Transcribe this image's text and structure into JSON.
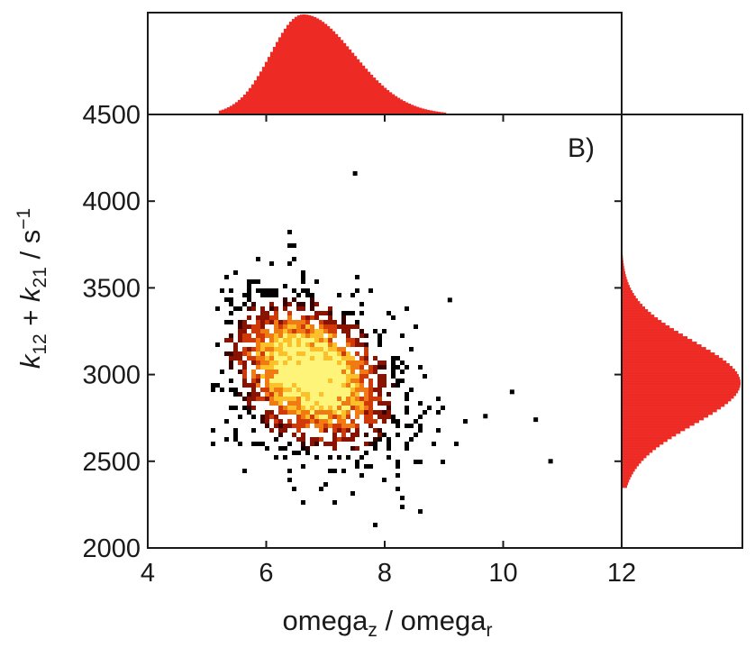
{
  "chart_data": {
    "type": "heatmap",
    "panel_label": "B)",
    "xlabel": {
      "base": "omega",
      "sub1": "z",
      "sep": " / ",
      "base2": "omega",
      "sub2": "r"
    },
    "ylabel": {
      "k": "k",
      "sub1": "12",
      "plus": " + ",
      "k2": "k",
      "sub2": "21",
      "unit": " / s",
      "sup": "−1"
    },
    "xlim": [
      4,
      12
    ],
    "ylim": [
      2000,
      4500
    ],
    "xticks": [
      4,
      6,
      8,
      10,
      12
    ],
    "yticks": [
      2000,
      2500,
      3000,
      3500,
      4000,
      4500
    ],
    "xtick_labels": [
      "4",
      "6",
      "8",
      "10",
      "12"
    ],
    "ytick_labels": [
      "2000",
      "2500",
      "3000",
      "3500",
      "4000",
      "4500"
    ],
    "distribution": {
      "center": [
        6.75,
        3000
      ],
      "sd": [
        0.8,
        255
      ],
      "correlation": -0.3,
      "colormap": [
        "#000000",
        "#3a0000",
        "#8a1200",
        "#d03a08",
        "#f27a12",
        "#fbc02a",
        "#fff47a"
      ]
    },
    "marginal_x": {
      "peak": 6.6,
      "sd_left": 0.55,
      "sd_right": 0.85,
      "range": [
        5.2,
        9.0
      ],
      "color": "#ee2a24"
    },
    "marginal_y": {
      "peak": 2960,
      "sd": 240,
      "range": [
        2350,
        3720
      ],
      "color": "#ee2a24"
    },
    "outliers": [
      [
        7.5,
        4160
      ],
      [
        10.8,
        2500
      ],
      [
        10.55,
        2740
      ],
      [
        10.15,
        2900
      ],
      [
        9.7,
        2760
      ],
      [
        9.1,
        3430
      ]
    ]
  }
}
